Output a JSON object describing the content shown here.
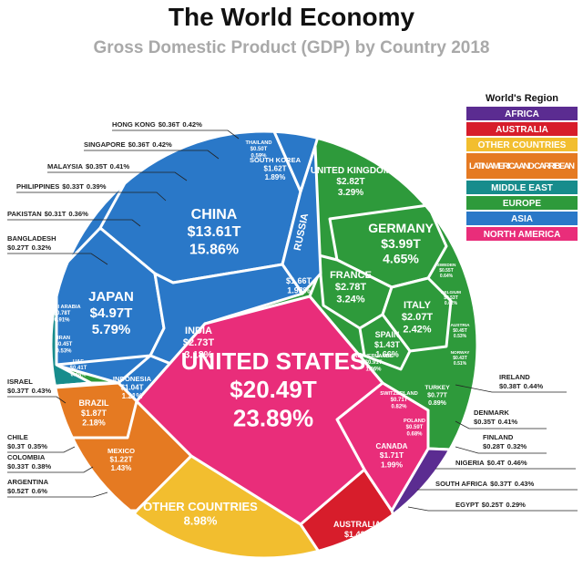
{
  "title": "The World Economy",
  "subtitle": "Gross Domestic Product (GDP) by Country 2018",
  "legend": {
    "title": "World's Region",
    "items": [
      {
        "label": "AFRICA",
        "color": "#5b2c91"
      },
      {
        "label": "AUSTRALIA",
        "color": "#d71d2b"
      },
      {
        "label": "OTHER COUNTRIES",
        "color": "#f2be2f"
      },
      {
        "label": "LATIN AMERICA AND CARRIBEAN",
        "color": "#e57a22"
      },
      {
        "label": "MIDDLE EAST",
        "color": "#178c8c"
      },
      {
        "label": "EUROPE",
        "color": "#2e9a3b"
      },
      {
        "label": "ASIA",
        "color": "#2a78c8"
      },
      {
        "label": "NORTH AMERICA",
        "color": "#e92d7a"
      }
    ]
  },
  "countries": [
    {
      "name": "UNITED STATES",
      "gdp": "$20.49T",
      "share": "23.89%"
    },
    {
      "name": "CHINA",
      "gdp": "$13.61T",
      "share": "15.86%"
    },
    {
      "name": "JAPAN",
      "gdp": "$4.97T",
      "share": "5.79%"
    },
    {
      "name": "GERMANY",
      "gdp": "$3.99T",
      "share": "4.65%"
    },
    {
      "name": "UNITED KINGDOM",
      "gdp": "$2.82T",
      "share": "3.29%"
    },
    {
      "name": "FRANCE",
      "gdp": "$2.78T",
      "share": "3.24%"
    },
    {
      "name": "INDIA",
      "gdp": "$2.73T",
      "share": "3.18%"
    },
    {
      "name": "ITALY",
      "gdp": "$2.07T",
      "share": "2.42%"
    },
    {
      "name": "BRAZIL",
      "gdp": "$1.87T",
      "share": "2.18%"
    },
    {
      "name": "CANADA",
      "gdp": "$1.71T",
      "share": "1.99%"
    },
    {
      "name": "RUSSIA",
      "gdp": "$1.66T",
      "share": "1.93%"
    },
    {
      "name": "SOUTH KOREA",
      "gdp": "$1.62T",
      "share": "1.89%"
    },
    {
      "name": "AUSTRALIA",
      "gdp": "$1.43T",
      "share": "1.67%"
    },
    {
      "name": "SPAIN",
      "gdp": "$1.43T",
      "share": "1.66%"
    },
    {
      "name": "MEXICO",
      "gdp": "$1.22T",
      "share": "1.43%"
    },
    {
      "name": "INDONESIA",
      "gdp": "$1.04T",
      "share": "1.21%"
    },
    {
      "name": "NETHERLANDS",
      "gdp": "$0.91T",
      "share": "1.06%"
    },
    {
      "name": "SWITZERLAND",
      "gdp": "$0.71T",
      "share": "0.82%"
    },
    {
      "name": "TURKEY",
      "gdp": "$0.77T",
      "share": "0.89%"
    },
    {
      "name": "SAUDI ARABIA",
      "gdp": "$0.78T",
      "share": "0.91%"
    },
    {
      "name": "THAILAND",
      "gdp": "$0.50T",
      "share": "0.59%"
    },
    {
      "name": "POLAND",
      "gdp": "$0.59T",
      "share": "0.68%"
    },
    {
      "name": "SWEDEN",
      "gdp": "$0.55T",
      "share": "0.64%"
    },
    {
      "name": "BELGIUM",
      "gdp": "$0.53T",
      "share": "0.62%"
    },
    {
      "name": "AUSTRIA",
      "gdp": "$0.45T",
      "share": "0.53%"
    },
    {
      "name": "NORWAY",
      "gdp": "$0.43T",
      "share": "0.51%"
    },
    {
      "name": "IRAN",
      "gdp": "$0.45T",
      "share": "0.53%"
    },
    {
      "name": "UAE",
      "gdp": "$0.41T",
      "share": "0.48%"
    },
    {
      "name": "OTHER COUNTRIES",
      "share": "8.98%"
    }
  ],
  "callouts": [
    {
      "name": "HONG KONG",
      "gdp": "$0.36T",
      "share": "0.42%"
    },
    {
      "name": "SINGAPORE",
      "gdp": "$0.36T",
      "share": "0.42%"
    },
    {
      "name": "MALAYSIA",
      "gdp": "$0.35T",
      "share": "0.41%"
    },
    {
      "name": "PHILIPPINES",
      "gdp": "$0.33T",
      "share": "0.39%"
    },
    {
      "name": "PAKISTAN",
      "gdp": "$0.31T",
      "share": "0.36%"
    },
    {
      "name": "BANGLADESH",
      "gdp": "$0.27T",
      "share": "0.32%"
    },
    {
      "name": "ISRAEL",
      "gdp": "$0.37T",
      "share": "0.43%"
    },
    {
      "name": "CHILE",
      "gdp": "$0.3T",
      "share": "0.35%"
    },
    {
      "name": "COLOMBIA",
      "gdp": "$0.33T",
      "share": "0.38%"
    },
    {
      "name": "ARGENTINA",
      "gdp": "$0.52T",
      "share": "0.6%"
    },
    {
      "name": "IRELAND",
      "gdp": "$0.38T",
      "share": "0.44%"
    },
    {
      "name": "DENMARK",
      "gdp": "$0.35T",
      "share": "0.41%"
    },
    {
      "name": "FINLAND",
      "gdp": "$0.28T",
      "share": "0.32%"
    },
    {
      "name": "NIGERIA",
      "gdp": "$0.4T",
      "share": "0.46%"
    },
    {
      "name": "SOUTH AFRICA",
      "gdp": "$0.37T",
      "share": "0.43%"
    },
    {
      "name": "EGYPT",
      "gdp": "$0.25T",
      "share": "0.29%"
    }
  ]
}
